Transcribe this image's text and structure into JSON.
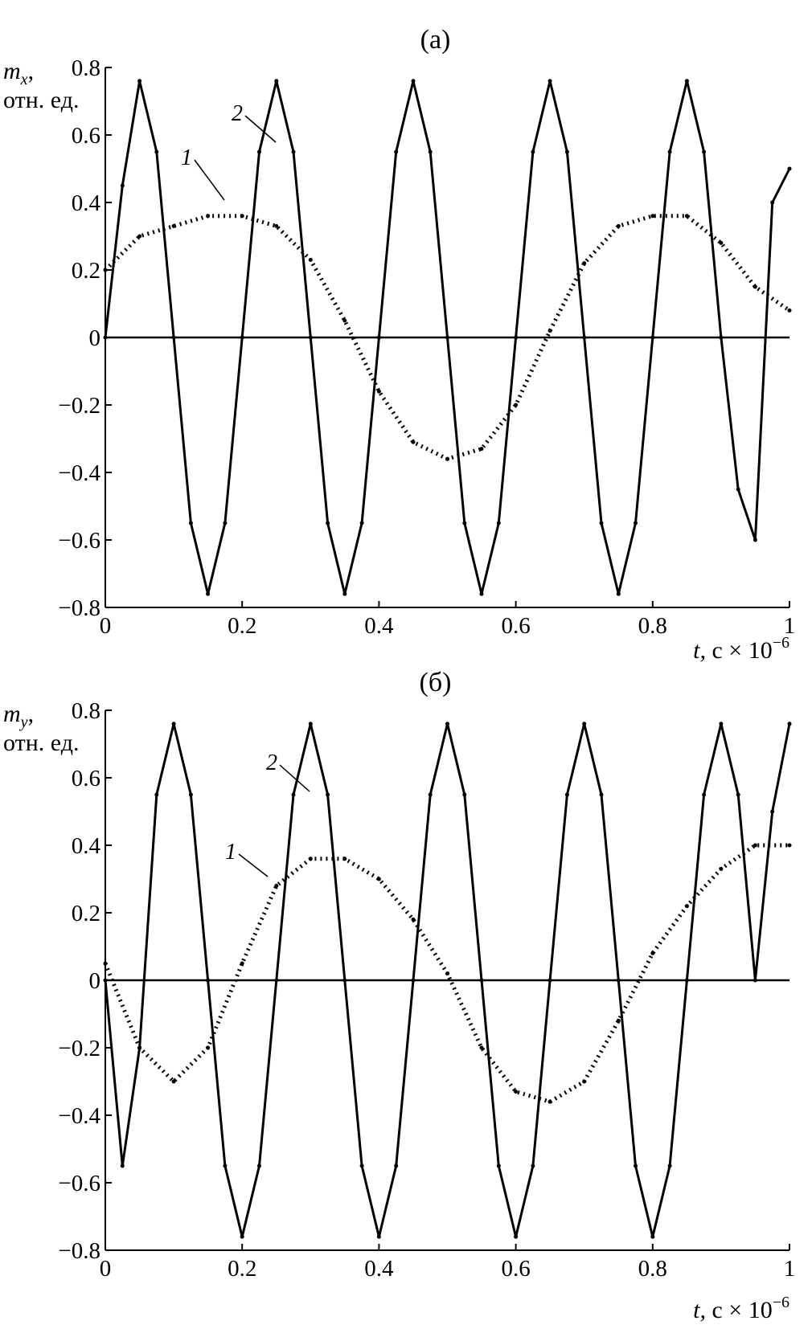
{
  "chart_data": [
    {
      "type": "line",
      "panel": "(a)",
      "ylabel": "m",
      "ylabel_sub": "x",
      "ylabel_comma": ",",
      "ylabel_units": "отн. ед.",
      "xlabel_var": "t,",
      "xlabel_unit": "с × 10",
      "xlabel_exp": "−6",
      "xlim": [
        0,
        1
      ],
      "ylim": [
        -0.8,
        0.8
      ],
      "x_ticks": [
        "0",
        "0.2",
        "0.4",
        "0.6",
        "0.8",
        "1"
      ],
      "y_ticks": [
        "0.8",
        "0.6",
        "0.4",
        "0.2",
        "0",
        "−0.2",
        "−0.4",
        "−0.6",
        "−0.8"
      ],
      "grid": false,
      "series": [
        {
          "name": "1",
          "style": "dotted",
          "x": [
            0.0,
            0.05,
            0.1,
            0.15,
            0.2,
            0.25,
            0.3,
            0.35,
            0.4,
            0.45,
            0.5,
            0.55,
            0.6,
            0.65,
            0.7,
            0.75,
            0.8,
            0.85,
            0.9,
            0.95,
            1.0
          ],
          "y": [
            0.2,
            0.3,
            0.33,
            0.36,
            0.36,
            0.33,
            0.23,
            0.05,
            -0.16,
            -0.31,
            -0.36,
            -0.33,
            -0.2,
            0.02,
            0.22,
            0.33,
            0.36,
            0.36,
            0.28,
            0.15,
            0.08
          ]
        },
        {
          "name": "2",
          "style": "solid",
          "x": [
            0.0,
            0.025,
            0.05,
            0.075,
            0.1,
            0.125,
            0.15,
            0.175,
            0.2,
            0.225,
            0.25,
            0.275,
            0.3,
            0.325,
            0.35,
            0.375,
            0.4,
            0.425,
            0.45,
            0.475,
            0.5,
            0.525,
            0.55,
            0.575,
            0.6,
            0.625,
            0.65,
            0.675,
            0.7,
            0.725,
            0.75,
            0.775,
            0.8,
            0.825,
            0.85,
            0.875,
            0.9,
            0.925,
            0.95,
            0.975,
            1.0
          ],
          "y": [
            0.0,
            0.45,
            0.76,
            0.55,
            0.0,
            -0.55,
            -0.76,
            -0.55,
            0.0,
            0.55,
            0.76,
            0.55,
            0.0,
            -0.55,
            -0.76,
            -0.55,
            0.0,
            0.55,
            0.76,
            0.55,
            0.0,
            -0.55,
            -0.76,
            -0.55,
            0.0,
            0.55,
            0.76,
            0.55,
            0.0,
            -0.55,
            -0.76,
            -0.55,
            0.0,
            0.55,
            0.76,
            0.55,
            0.0,
            -0.45,
            -0.6,
            0.4,
            0.5
          ]
        }
      ]
    },
    {
      "type": "line",
      "panel": "(б)",
      "ylabel": "m",
      "ylabel_sub": "y",
      "ylabel_comma": ",",
      "ylabel_units": "отн. ед.",
      "xlabel_var": "t,",
      "xlabel_unit": "с × 10",
      "xlabel_exp": "−6",
      "xlim": [
        0,
        1
      ],
      "ylim": [
        -0.8,
        0.8
      ],
      "x_ticks": [
        "0",
        "0.2",
        "0.4",
        "0.6",
        "0.8",
        "1"
      ],
      "y_ticks": [
        "0.8",
        "0.6",
        "0.4",
        "0.2",
        "0",
        "−0.2",
        "−0.4",
        "−0.6",
        "−0.8"
      ],
      "grid": false,
      "series": [
        {
          "name": "1",
          "style": "dotted",
          "x": [
            0.0,
            0.05,
            0.1,
            0.15,
            0.2,
            0.25,
            0.3,
            0.35,
            0.4,
            0.45,
            0.5,
            0.55,
            0.6,
            0.65,
            0.7,
            0.75,
            0.8,
            0.85,
            0.9,
            0.95,
            1.0
          ],
          "y": [
            0.05,
            -0.2,
            -0.3,
            -0.2,
            0.05,
            0.28,
            0.36,
            0.36,
            0.3,
            0.18,
            0.02,
            -0.2,
            -0.33,
            -0.36,
            -0.3,
            -0.12,
            0.08,
            0.22,
            0.33,
            0.4,
            0.4
          ]
        },
        {
          "name": "2",
          "style": "solid",
          "x": [
            0.0,
            0.025,
            0.05,
            0.075,
            0.1,
            0.125,
            0.15,
            0.175,
            0.2,
            0.225,
            0.25,
            0.275,
            0.3,
            0.325,
            0.35,
            0.375,
            0.4,
            0.425,
            0.45,
            0.475,
            0.5,
            0.525,
            0.55,
            0.575,
            0.6,
            0.625,
            0.65,
            0.675,
            0.7,
            0.725,
            0.75,
            0.775,
            0.8,
            0.825,
            0.85,
            0.875,
            0.9,
            0.925,
            0.95,
            0.975,
            1.0
          ],
          "y": [
            0.0,
            -0.55,
            -0.2,
            0.55,
            0.76,
            0.55,
            0.0,
            -0.55,
            -0.76,
            -0.55,
            0.0,
            0.55,
            0.76,
            0.55,
            0.0,
            -0.55,
            -0.76,
            -0.55,
            0.0,
            0.55,
            0.76,
            0.55,
            0.0,
            -0.55,
            -0.76,
            -0.55,
            0.0,
            0.55,
            0.76,
            0.55,
            0.0,
            -0.55,
            -0.76,
            -0.55,
            0.0,
            0.55,
            0.76,
            0.55,
            0.0,
            0.5,
            0.76
          ]
        }
      ]
    }
  ]
}
